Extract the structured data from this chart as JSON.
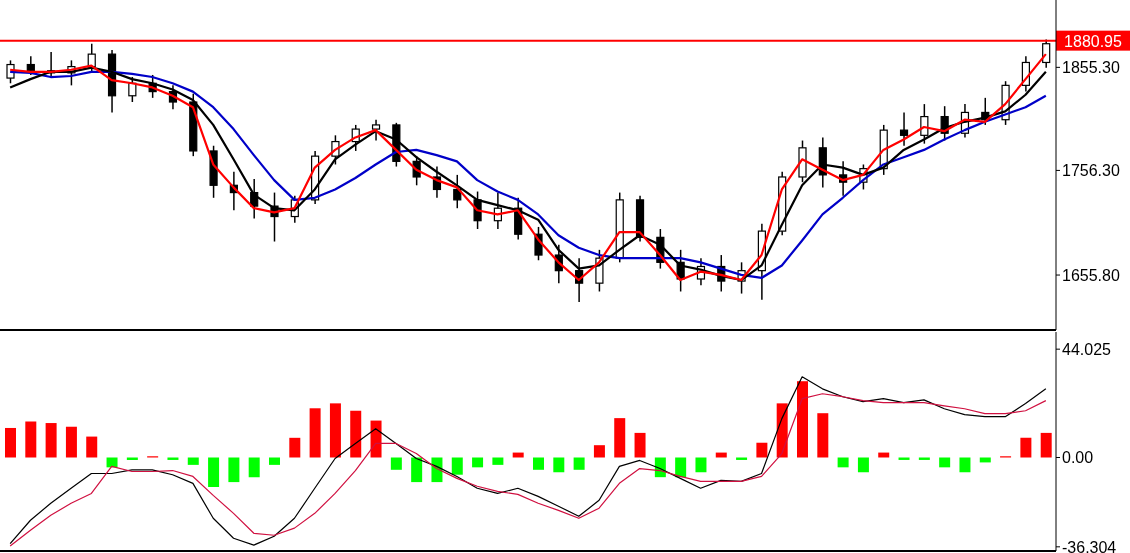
{
  "chart_data": [
    {
      "type": "candlestick",
      "categories": [
        null,
        null,
        null,
        null,
        null,
        null,
        null,
        null,
        null,
        null,
        null,
        null,
        null,
        null,
        null,
        null,
        null,
        null,
        null,
        null,
        null,
        null,
        null,
        null,
        null,
        null,
        null,
        null,
        null,
        null,
        null,
        null,
        null,
        null,
        null,
        null,
        null,
        null,
        null,
        null,
        null,
        null,
        null,
        null,
        null,
        null,
        null,
        null,
        null,
        null,
        null,
        null
      ],
      "ohlc": [
        [
          1845,
          1862,
          1840,
          1858
        ],
        [
          1858,
          1866,
          1848,
          1852
        ],
        [
          1852,
          1870,
          1846,
          1850
        ],
        [
          1850,
          1862,
          1838,
          1856
        ],
        [
          1856,
          1878,
          1850,
          1868
        ],
        [
          1868,
          1872,
          1812,
          1828
        ],
        [
          1828,
          1846,
          1822,
          1840
        ],
        [
          1840,
          1848,
          1826,
          1832
        ],
        [
          1832,
          1838,
          1815,
          1822
        ],
        [
          1822,
          1830,
          1770,
          1775
        ],
        [
          1775,
          1780,
          1730,
          1742
        ],
        [
          1742,
          1755,
          1718,
          1735
        ],
        [
          1735,
          1748,
          1710,
          1722
        ],
        [
          1722,
          1735,
          1688,
          1712
        ],
        [
          1712,
          1732,
          1706,
          1728
        ],
        [
          1728,
          1775,
          1724,
          1770
        ],
        [
          1770,
          1790,
          1762,
          1784
        ],
        [
          1784,
          1800,
          1775,
          1796
        ],
        [
          1796,
          1805,
          1785,
          1800
        ],
        [
          1800,
          1802,
          1760,
          1765
        ],
        [
          1765,
          1770,
          1742,
          1750
        ],
        [
          1750,
          1760,
          1730,
          1738
        ],
        [
          1738,
          1752,
          1720,
          1728
        ],
        [
          1728,
          1736,
          1700,
          1708
        ],
        [
          1708,
          1735,
          1700,
          1720
        ],
        [
          1720,
          1730,
          1690,
          1695
        ],
        [
          1695,
          1702,
          1670,
          1675
        ],
        [
          1675,
          1685,
          1648,
          1660
        ],
        [
          1660,
          1672,
          1630,
          1648
        ],
        [
          1648,
          1680,
          1640,
          1672
        ],
        [
          1672,
          1735,
          1668,
          1728
        ],
        [
          1728,
          1732,
          1688,
          1692
        ],
        [
          1692,
          1700,
          1662,
          1668
        ],
        [
          1668,
          1680,
          1640,
          1652
        ],
        [
          1652,
          1672,
          1646,
          1664
        ],
        [
          1664,
          1675,
          1640,
          1650
        ],
        [
          1650,
          1668,
          1638,
          1660
        ],
        [
          1660,
          1705,
          1632,
          1698
        ],
        [
          1698,
          1755,
          1694,
          1750
        ],
        [
          1750,
          1785,
          1745,
          1778
        ],
        [
          1778,
          1788,
          1740,
          1752
        ],
        [
          1752,
          1765,
          1732,
          1745
        ],
        [
          1745,
          1762,
          1738,
          1758
        ],
        [
          1758,
          1800,
          1752,
          1795
        ],
        [
          1795,
          1812,
          1780,
          1790
        ],
        [
          1790,
          1820,
          1782,
          1808
        ],
        [
          1808,
          1818,
          1785,
          1792
        ],
        [
          1792,
          1820,
          1788,
          1812
        ],
        [
          1812,
          1826,
          1800,
          1805
        ],
        [
          1805,
          1842,
          1800,
          1838
        ],
        [
          1838,
          1866,
          1832,
          1860
        ],
        [
          1860,
          1882,
          1855,
          1878
        ]
      ],
      "series": [
        {
          "type": "line",
          "color": "#0000c8",
          "values": [
            1851,
            1850,
            1846,
            1847,
            1851,
            1851,
            1849,
            1846,
            1840,
            1832,
            1817,
            1796,
            1771,
            1747,
            1728,
            1730,
            1738,
            1749,
            1762,
            1774,
            1776,
            1771,
            1765,
            1747,
            1736,
            1728,
            1714,
            1694,
            1682,
            1675,
            1672,
            1672,
            1672,
            1672,
            1668,
            1662,
            1656,
            1653,
            1665,
            1689,
            1714,
            1730,
            1747,
            1762,
            1769,
            1776,
            1786,
            1795,
            1803,
            1810,
            1817,
            1828
          ]
        },
        {
          "type": "line",
          "color": "#000000",
          "values": [
            1836,
            1844,
            1851,
            1851,
            1855,
            1851,
            1844,
            1840,
            1834,
            1824,
            1800,
            1767,
            1733,
            1720,
            1718,
            1738,
            1767,
            1781,
            1794,
            1786,
            1769,
            1755,
            1742,
            1728,
            1723,
            1718,
            1709,
            1680,
            1662,
            1665,
            1680,
            1694,
            1685,
            1665,
            1661,
            1655,
            1651,
            1665,
            1704,
            1742,
            1762,
            1759,
            1752,
            1759,
            1776,
            1786,
            1797,
            1803,
            1807,
            1813,
            1829,
            1851
          ]
        },
        {
          "type": "line",
          "color": "#ff0000",
          "values": [
            1853,
            1851,
            1851,
            1853,
            1857,
            1843,
            1840,
            1836,
            1828,
            1817,
            1762,
            1740,
            1720,
            1716,
            1720,
            1759,
            1776,
            1788,
            1795,
            1776,
            1757,
            1747,
            1740,
            1718,
            1714,
            1718,
            1690,
            1668,
            1651,
            1668,
            1697,
            1697,
            1675,
            1651,
            1659,
            1656,
            1651,
            1675,
            1738,
            1767,
            1757,
            1747,
            1752,
            1776,
            1786,
            1798,
            1794,
            1805,
            1803,
            1820,
            1844,
            1868
          ]
        }
      ],
      "ylim": [
        1603,
        1920
      ],
      "yticks": [
        {
          "value": 1655.8,
          "label": "1655.80"
        },
        {
          "value": 1756.3,
          "label": "1756.30"
        },
        {
          "value": 1855.3,
          "label": "1855.30"
        }
      ],
      "ref_lines": [
        {
          "axis": "y",
          "value": 1880.95,
          "label": "1880.95",
          "color": "#ff0000"
        }
      ],
      "tick_labels": "y"
    },
    {
      "type": "bar",
      "categories": [
        null,
        null,
        null,
        null,
        null,
        null,
        null,
        null,
        null,
        null,
        null,
        null,
        null,
        null,
        null,
        null,
        null,
        null,
        null,
        null,
        null,
        null,
        null,
        null,
        null,
        null,
        null,
        null,
        null,
        null,
        null,
        null,
        null,
        null,
        null,
        null,
        null,
        null,
        null,
        null,
        null,
        null,
        null,
        null,
        null,
        null,
        null,
        null,
        null,
        null,
        null,
        null
      ],
      "series": [
        {
          "type": "bar",
          "colors": [
            "#ff0000",
            "#ff0000",
            "#ff0000",
            "#ff0000",
            "#ff0000",
            "#00ff00",
            "#00ff00",
            "#ff0000",
            "#00ff00",
            "#00ff00",
            "#00ff00",
            "#00ff00",
            "#00ff00",
            "#00ff00",
            "#ff0000",
            "#ff0000",
            "#ff0000",
            "#ff0000",
            "#ff0000",
            "#00ff00",
            "#00ff00",
            "#00ff00",
            "#00ff00",
            "#00ff00",
            "#00ff00",
            "#ff0000",
            "#00ff00",
            "#00ff00",
            "#00ff00",
            "#ff0000",
            "#ff0000",
            "#ff0000",
            "#00ff00",
            "#00ff00",
            "#00ff00",
            "#ff0000",
            "#00ff00",
            "#ff0000",
            "#ff0000",
            "#ff0000",
            "#ff0000",
            "#00ff00",
            "#00ff00",
            "#ff0000",
            "#00ff00",
            "#00ff00",
            "#00ff00",
            "#00ff00",
            "#00ff00",
            "#ff0000",
            "#ff0000",
            "#ff0000"
          ],
          "values": [
            12,
            14.6,
            14,
            12.5,
            8.5,
            -4,
            -1,
            0.5,
            -1,
            -3,
            -12,
            -10,
            -8,
            -3,
            8,
            20,
            22,
            19,
            15,
            -5,
            -10,
            -10,
            -7,
            -4,
            -3,
            2,
            -5,
            -6,
            -5,
            5,
            16,
            10,
            -8,
            -8,
            -6,
            2,
            -1,
            6,
            22,
            31,
            18,
            -4,
            -6,
            2,
            -1,
            -1,
            -4,
            -6,
            -2,
            0.5,
            8,
            10
          ]
        },
        {
          "type": "line",
          "color": "#000000",
          "values": [
            -35,
            -25.5,
            -18.6,
            -12.5,
            -6.5,
            -6.5,
            -5,
            -5,
            -7,
            -10.5,
            -24.7,
            -32.8,
            -35.6,
            -32,
            -24.7,
            -12.5,
            -0.4,
            5.7,
            11.7,
            5.7,
            -0.4,
            -3.6,
            -7.7,
            -12.5,
            -14.6,
            -12.5,
            -15.8,
            -19.8,
            -23.9,
            -17.4,
            -3.6,
            -1.2,
            -4.5,
            -8.5,
            -12.5,
            -9.3,
            -9.7,
            -6.5,
            15.8,
            32.8,
            27.9,
            24.7,
            22.7,
            23.9,
            22.3,
            23.4,
            19.8,
            17.4,
            16.6,
            16.6,
            21.9,
            27.9
          ]
        },
        {
          "type": "line",
          "color": "#d01040",
          "values": [
            -36,
            -29.6,
            -23.5,
            -18.6,
            -14.6,
            -3.6,
            -5.7,
            -5.7,
            -5.3,
            -7.7,
            -15.4,
            -22.7,
            -30.8,
            -31.6,
            -28.7,
            -22.7,
            -14.6,
            -5.3,
            5.7,
            5.7,
            1.6,
            -4.5,
            -8.5,
            -11.7,
            -13.8,
            -15,
            -18.6,
            -21.5,
            -24.7,
            -20.6,
            -10.5,
            -4.5,
            -5.3,
            -7.7,
            -9.7,
            -9.7,
            -9.7,
            -7.7,
            1.6,
            23.9,
            25.9,
            24.7,
            23.1,
            22.3,
            22.3,
            22.3,
            21,
            19.8,
            17.8,
            17.8,
            19,
            23.1
          ]
        }
      ],
      "ylim": [
        -38,
        51
      ],
      "yticks": [
        -36.304,
        {
          "value": 0,
          "label": "0.00"
        },
        44.025
      ],
      "tick_labels": "y"
    }
  ]
}
